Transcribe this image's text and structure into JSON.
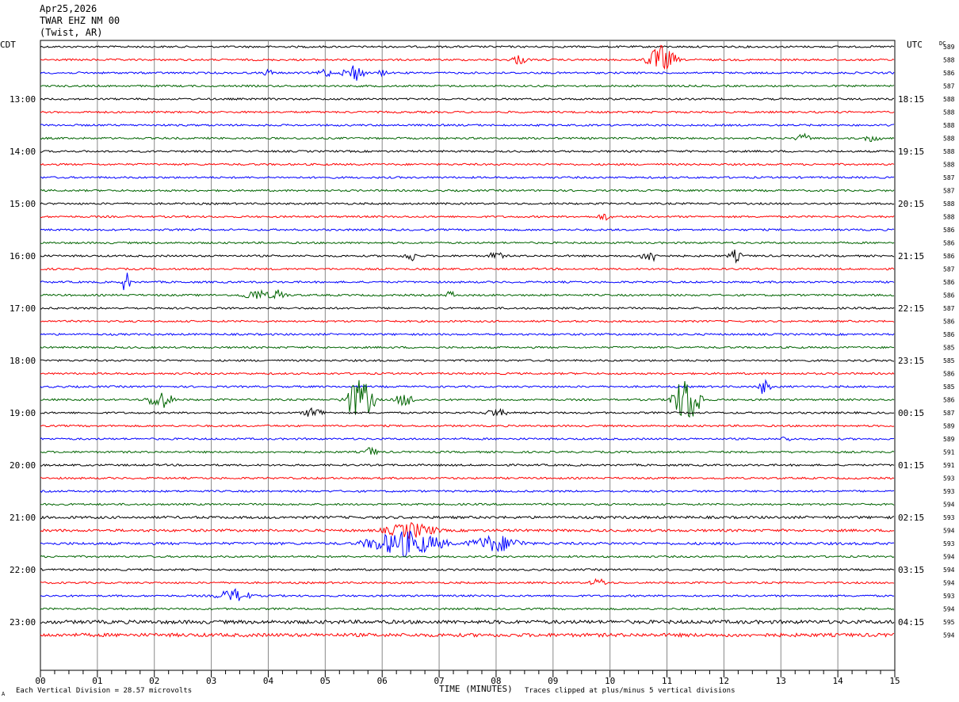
{
  "header": {
    "date": "Apr25,2026",
    "station": "TWAR EHZ NM 00",
    "location": "(Twist, AR)"
  },
  "labels": {
    "left_tz": "CDT",
    "right_tz": "UTC",
    "dc": "DC"
  },
  "footer": {
    "scale": "Each Vertical Division =   28.57 microvolts",
    "clip": "Traces clipped at plus/minus 5 vertical divisions",
    "corner_mark": "A"
  },
  "chart_data": {
    "type": "line",
    "title": "",
    "xlabel": "TIME (MINUTES)",
    "ylabel": "",
    "x_ticks": [
      "00",
      "01",
      "02",
      "03",
      "04",
      "05",
      "06",
      "07",
      "08",
      "09",
      "10",
      "11",
      "12",
      "13",
      "14",
      "15"
    ],
    "xlim": [
      0,
      15
    ],
    "trace_colors": [
      "#000000",
      "#ff0000",
      "#0000ff",
      "#006400"
    ],
    "left_hour_labels": [
      "13:00",
      "14:00",
      "15:00",
      "16:00",
      "17:00",
      "18:00",
      "19:00",
      "20:00",
      "21:00",
      "22:00",
      "23:00"
    ],
    "right_hour_labels": [
      "18:15",
      "19:15",
      "20:15",
      "21:15",
      "22:15",
      "23:15",
      "00:15",
      "01:15",
      "02:15",
      "03:15",
      "04:15"
    ],
    "dc_values": [
      "589",
      "588",
      "586",
      "587",
      "588",
      "588",
      "588",
      "588",
      "588",
      "588",
      "587",
      "587",
      "588",
      "588",
      "586",
      "586",
      "586",
      "587",
      "586",
      "586",
      "587",
      "586",
      "586",
      "585",
      "585",
      "586",
      "585",
      "586",
      "587",
      "589",
      "589",
      "591",
      "591",
      "593",
      "593",
      "594",
      "593",
      "594",
      "593",
      "594",
      "594",
      "594",
      "593",
      "594",
      "595",
      "594"
    ],
    "events": [
      {
        "trace": 1,
        "minute": 10.9,
        "amp": 2.2,
        "width": 0.35
      },
      {
        "trace": 1,
        "minute": 8.4,
        "amp": 0.7,
        "width": 0.2
      },
      {
        "trace": 2,
        "minute": 5.5,
        "amp": 1.4,
        "width": 0.25
      },
      {
        "trace": 2,
        "minute": 5.0,
        "amp": 0.8,
        "width": 0.15
      },
      {
        "trace": 2,
        "minute": 4.0,
        "amp": 0.6,
        "width": 0.1
      },
      {
        "trace": 2,
        "minute": 6.0,
        "amp": 0.5,
        "width": 0.1
      },
      {
        "trace": 7,
        "minute": 13.4,
        "amp": 0.6,
        "width": 0.2
      },
      {
        "trace": 7,
        "minute": 14.6,
        "amp": 0.5,
        "width": 0.2
      },
      {
        "trace": 13,
        "minute": 9.9,
        "amp": 0.6,
        "width": 0.15
      },
      {
        "trace": 16,
        "minute": 6.5,
        "amp": 0.9,
        "width": 0.15
      },
      {
        "trace": 16,
        "minute": 8.0,
        "amp": 0.8,
        "width": 0.15
      },
      {
        "trace": 16,
        "minute": 10.7,
        "amp": 1.0,
        "width": 0.2
      },
      {
        "trace": 16,
        "minute": 12.2,
        "amp": 0.9,
        "width": 0.15
      },
      {
        "trace": 18,
        "minute": 1.5,
        "amp": 1.8,
        "width": 0.1
      },
      {
        "trace": 19,
        "minute": 3.8,
        "amp": 0.8,
        "width": 0.35
      },
      {
        "trace": 19,
        "minute": 4.2,
        "amp": 1.0,
        "width": 0.15
      },
      {
        "trace": 19,
        "minute": 7.2,
        "amp": 0.7,
        "width": 0.1
      },
      {
        "trace": 26,
        "minute": 12.7,
        "amp": 1.2,
        "width": 0.15
      },
      {
        "trace": 27,
        "minute": 2.1,
        "amp": 1.5,
        "width": 0.3
      },
      {
        "trace": 27,
        "minute": 5.6,
        "amp": 3.6,
        "width": 0.35
      },
      {
        "trace": 27,
        "minute": 6.4,
        "amp": 1.0,
        "width": 0.25
      },
      {
        "trace": 27,
        "minute": 11.35,
        "amp": 4.0,
        "width": 0.35
      },
      {
        "trace": 28,
        "minute": 4.8,
        "amp": 0.8,
        "width": 0.25
      },
      {
        "trace": 28,
        "minute": 8.0,
        "amp": 0.6,
        "width": 0.25
      },
      {
        "trace": 30,
        "minute": 13.1,
        "amp": 0.6,
        "width": 0.1
      },
      {
        "trace": 31,
        "minute": 5.8,
        "amp": 0.8,
        "width": 0.15
      },
      {
        "trace": 37,
        "minute": 6.5,
        "amp": 1.2,
        "width": 0.6
      },
      {
        "trace": 38,
        "minute": 6.4,
        "amp": 2.0,
        "width": 0.9
      },
      {
        "trace": 38,
        "minute": 8.0,
        "amp": 1.3,
        "width": 0.6
      },
      {
        "trace": 41,
        "minute": 9.8,
        "amp": 0.6,
        "width": 0.2
      },
      {
        "trace": 42,
        "minute": 3.4,
        "amp": 1.0,
        "width": 0.4
      }
    ]
  }
}
